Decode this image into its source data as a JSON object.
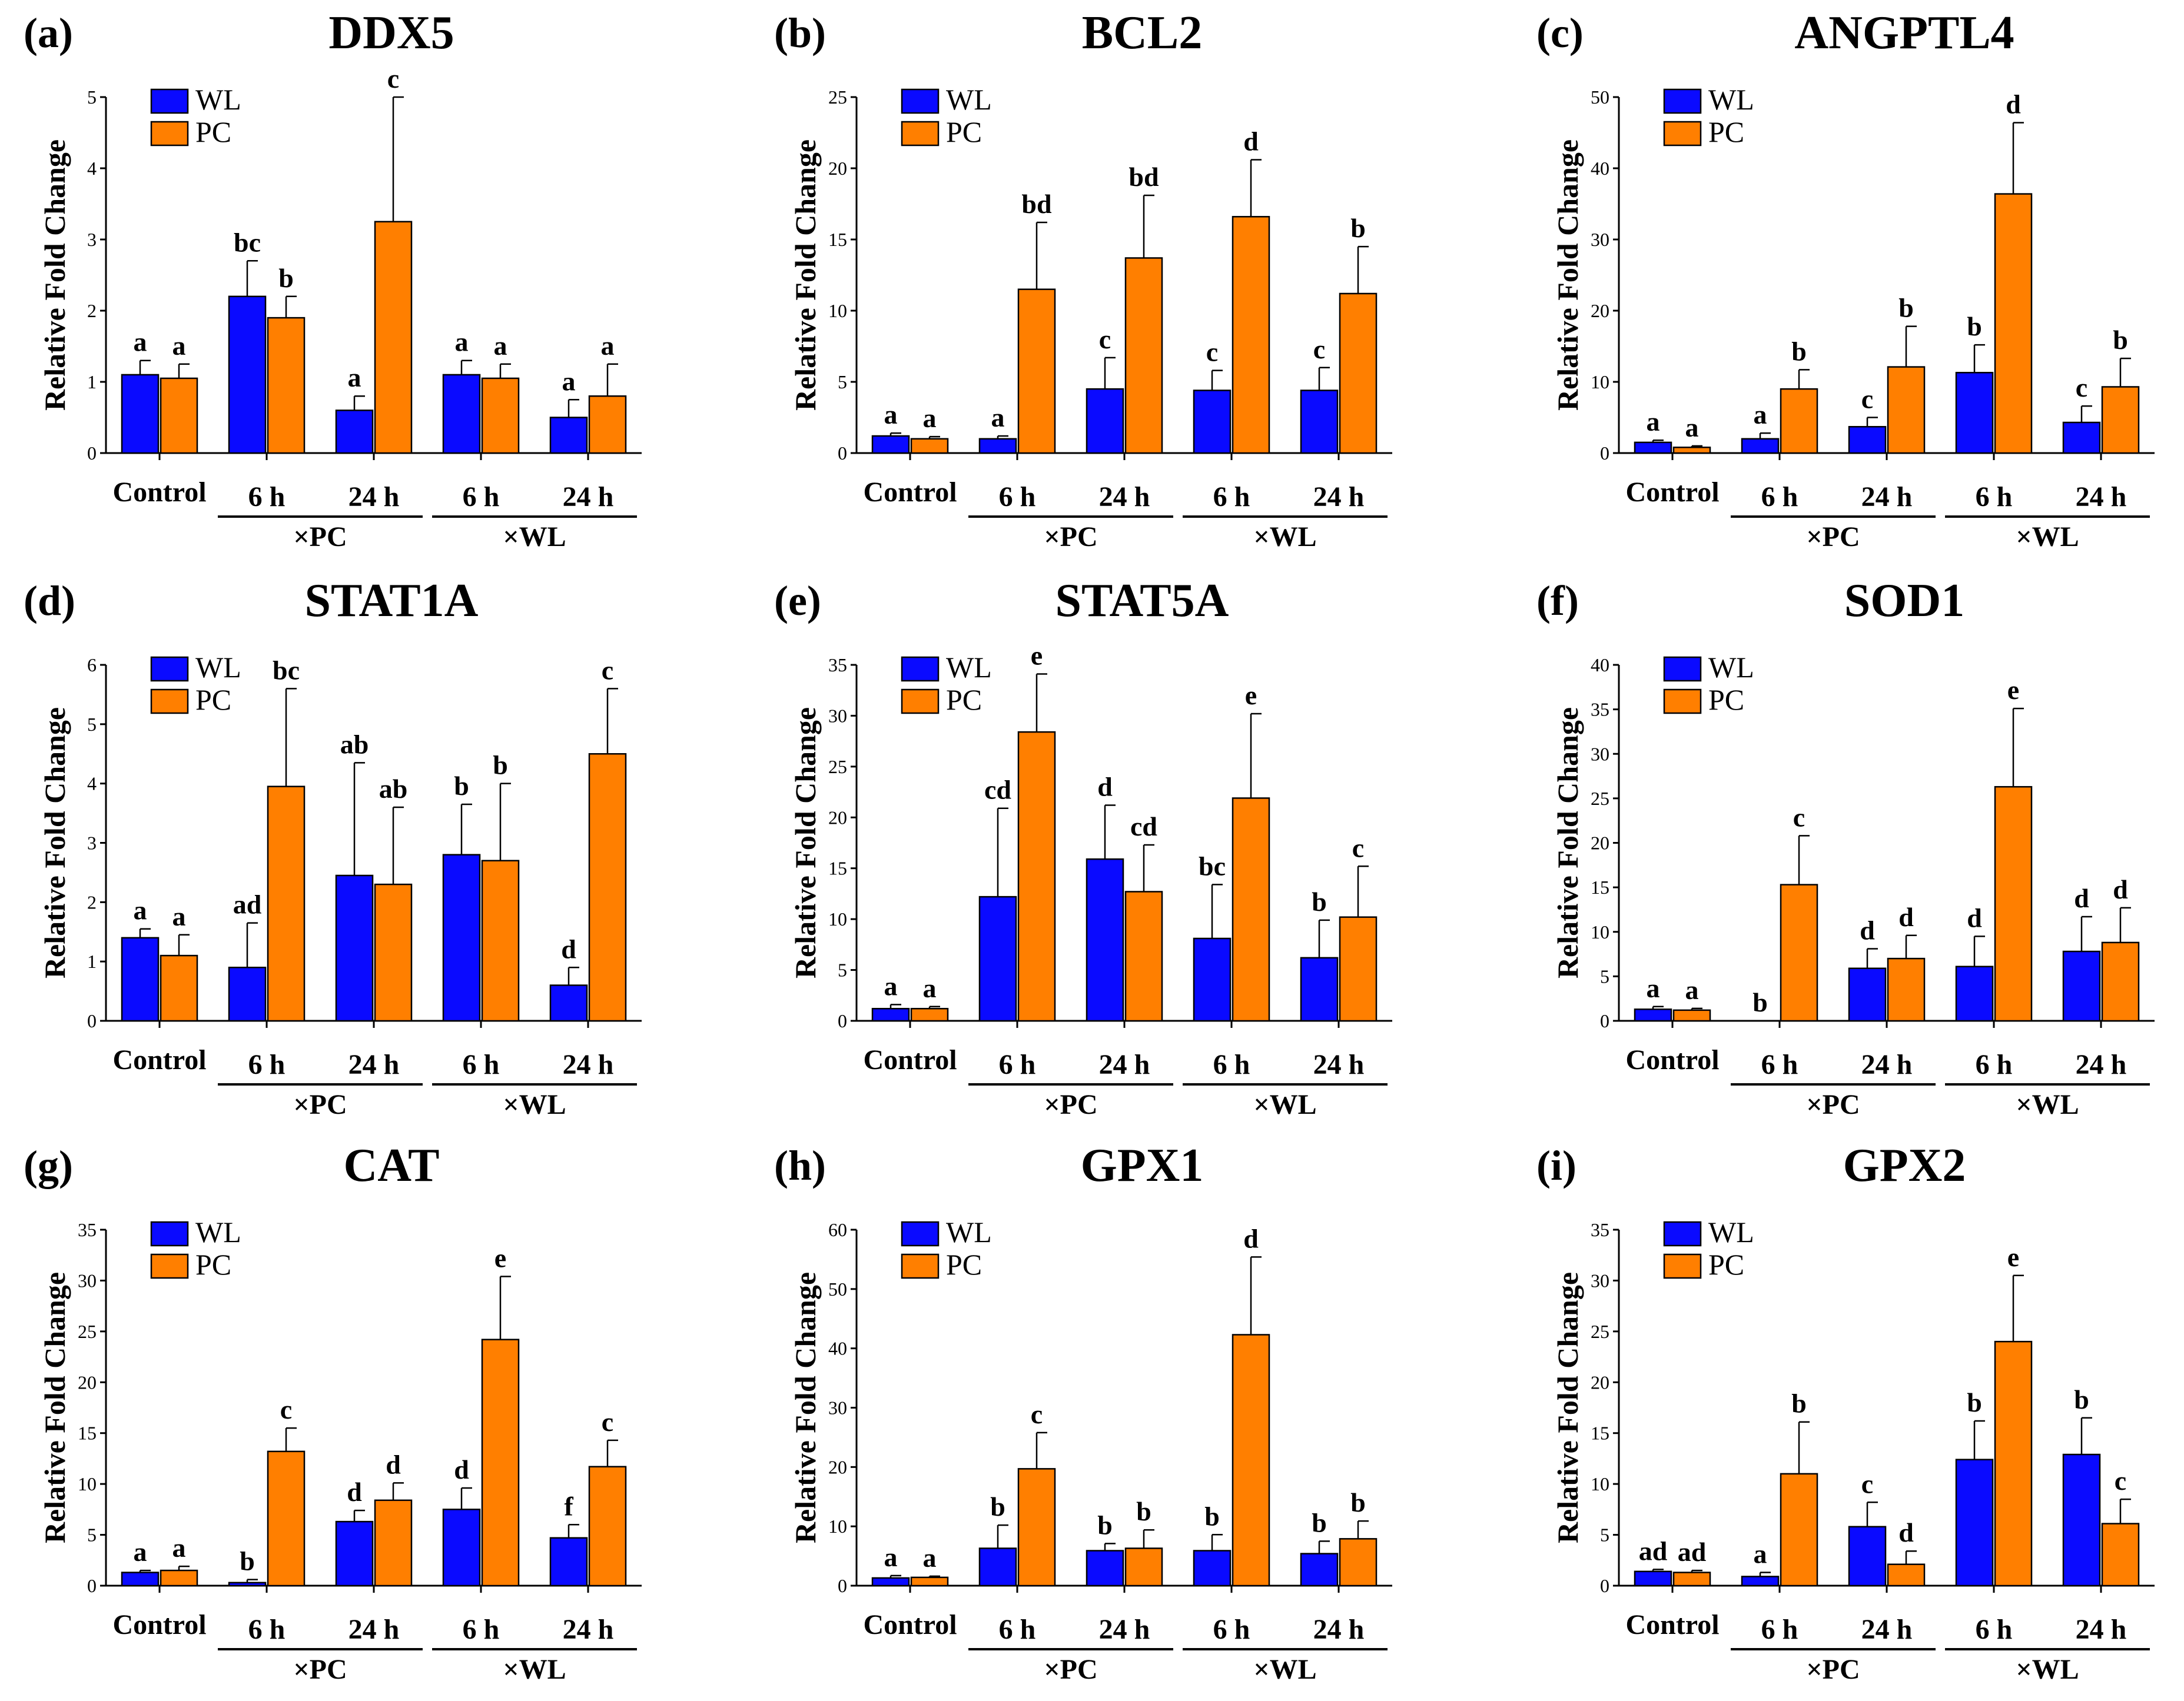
{
  "colors": {
    "wl": "#0a0aff",
    "pc": "#ff7f00"
  },
  "common": {
    "ylabel": "Relative Fold Change",
    "legend": [
      "WL",
      "PC"
    ],
    "categories": [
      "Control",
      "6 h",
      "24 h",
      "6 h",
      "24 h"
    ],
    "groups": [
      "×PC",
      "×WL"
    ]
  },
  "chart_data": [
    {
      "type": "bar",
      "panel": "(a)",
      "title": "DDX5",
      "ylim": [
        0,
        5
      ],
      "yticks": [
        0,
        1,
        2,
        3,
        4,
        5
      ],
      "categories": [
        "Control",
        "6 h",
        "24 h",
        "6 h",
        "24 h"
      ],
      "groups": [
        "×PC",
        "×WL"
      ],
      "series": [
        {
          "name": "WL",
          "values": [
            1.1,
            2.2,
            0.6,
            1.1,
            0.5
          ],
          "errors": [
            0.2,
            0.5,
            0.2,
            0.2,
            0.25
          ],
          "labels": [
            "a",
            "bc",
            "a",
            "a",
            "a"
          ]
        },
        {
          "name": "PC",
          "values": [
            1.05,
            1.9,
            3.25,
            1.05,
            0.8
          ],
          "errors": [
            0.2,
            0.3,
            1.75,
            0.2,
            0.45
          ],
          "labels": [
            "a",
            "b",
            "c",
            "a",
            "a"
          ]
        }
      ]
    },
    {
      "type": "bar",
      "panel": "(b)",
      "title": "BCL2",
      "ylim": [
        0,
        25
      ],
      "yticks": [
        0,
        5,
        10,
        15,
        20,
        25
      ],
      "categories": [
        "Control",
        "6 h",
        "24 h",
        "6 h",
        "24 h"
      ],
      "groups": [
        "×PC",
        "×WL"
      ],
      "series": [
        {
          "name": "WL",
          "values": [
            1.2,
            1.0,
            4.5,
            4.4,
            4.4
          ],
          "errors": [
            0.2,
            0.2,
            2.2,
            1.4,
            1.6
          ],
          "labels": [
            "a",
            "a",
            "c",
            "c",
            "c"
          ]
        },
        {
          "name": "PC",
          "values": [
            1.0,
            11.5,
            13.7,
            16.6,
            11.2
          ],
          "errors": [
            0.15,
            4.7,
            4.4,
            4.0,
            3.3
          ],
          "labels": [
            "a",
            "bd",
            "bd",
            "d",
            "b"
          ]
        }
      ]
    },
    {
      "type": "bar",
      "panel": "(c)",
      "title": "ANGPTL4",
      "ylim": [
        0,
        50
      ],
      "yticks": [
        0,
        10,
        20,
        30,
        40,
        50
      ],
      "categories": [
        "Control",
        "6 h",
        "24 h",
        "6 h",
        "24 h"
      ],
      "groups": [
        "×PC",
        "×WL"
      ],
      "series": [
        {
          "name": "WL",
          "values": [
            1.5,
            2.0,
            3.7,
            11.3,
            4.3
          ],
          "errors": [
            0.3,
            0.8,
            1.3,
            3.9,
            2.3
          ],
          "labels": [
            "a",
            "a",
            "c",
            "b",
            "c"
          ]
        },
        {
          "name": "PC",
          "values": [
            0.8,
            9.0,
            12.1,
            36.4,
            9.3
          ],
          "errors": [
            0.2,
            2.7,
            5.7,
            10.0,
            4.0
          ],
          "labels": [
            "a",
            "b",
            "b",
            "d",
            "b"
          ]
        }
      ]
    },
    {
      "type": "bar",
      "panel": "(d)",
      "title": "STAT1A",
      "ylim": [
        0,
        6
      ],
      "yticks": [
        0,
        1,
        2,
        3,
        4,
        5,
        6
      ],
      "categories": [
        "Control",
        "6 h",
        "24 h",
        "6 h",
        "24 h"
      ],
      "groups": [
        "×PC",
        "×WL"
      ],
      "series": [
        {
          "name": "WL",
          "values": [
            1.4,
            0.9,
            2.45,
            2.8,
            0.6
          ],
          "errors": [
            0.15,
            0.75,
            1.9,
            0.85,
            0.3
          ],
          "labels": [
            "a",
            "ad",
            "ab",
            "b",
            "d"
          ]
        },
        {
          "name": "PC",
          "values": [
            1.1,
            3.95,
            2.3,
            2.7,
            4.5
          ],
          "errors": [
            0.35,
            1.65,
            1.3,
            1.3,
            1.1
          ],
          "labels": [
            "a",
            "bc",
            "ab",
            "b",
            "c"
          ]
        }
      ]
    },
    {
      "type": "bar",
      "panel": "(e)",
      "title": "STAT5A",
      "ylim": [
        0,
        35
      ],
      "yticks": [
        0,
        5,
        10,
        15,
        20,
        25,
        30,
        35
      ],
      "categories": [
        "Control",
        "6 h",
        "24 h",
        "6 h",
        "24 h"
      ],
      "groups": [
        "×PC",
        "×WL"
      ],
      "series": [
        {
          "name": "WL",
          "values": [
            1.2,
            12.2,
            15.9,
            8.1,
            6.2
          ],
          "errors": [
            0.4,
            8.7,
            5.3,
            5.3,
            3.7
          ],
          "labels": [
            "a",
            "cd",
            "d",
            "bc",
            "b"
          ]
        },
        {
          "name": "PC",
          "values": [
            1.2,
            28.4,
            12.7,
            21.9,
            10.2
          ],
          "errors": [
            0.2,
            5.7,
            4.6,
            8.3,
            5.0
          ],
          "labels": [
            "a",
            "e",
            "cd",
            "e",
            "c"
          ]
        }
      ]
    },
    {
      "type": "bar",
      "panel": "(f)",
      "title": "SOD1",
      "ylim": [
        0,
        40
      ],
      "yticks": [
        0,
        5,
        10,
        15,
        20,
        25,
        30,
        35,
        40
      ],
      "categories": [
        "Control",
        "6 h",
        "24 h",
        "6 h",
        "24 h"
      ],
      "groups": [
        "×PC",
        "×WL"
      ],
      "series": [
        {
          "name": "WL",
          "values": [
            1.3,
            0.0,
            5.9,
            6.1,
            7.8
          ],
          "errors": [
            0.3,
            0.0,
            2.2,
            3.4,
            3.9
          ],
          "labels": [
            "a",
            "b",
            "d",
            "d",
            "d"
          ]
        },
        {
          "name": "PC",
          "values": [
            1.2,
            15.3,
            7.0,
            26.3,
            8.8
          ],
          "errors": [
            0.2,
            5.5,
            2.6,
            8.8,
            3.9
          ],
          "labels": [
            "a",
            "c",
            "d",
            "e",
            "d"
          ]
        }
      ]
    },
    {
      "type": "bar",
      "panel": "(g)",
      "title": "CAT",
      "ylim": [
        0,
        35
      ],
      "yticks": [
        0,
        5,
        10,
        15,
        20,
        25,
        30,
        35
      ],
      "categories": [
        "Control",
        "6 h",
        "24 h",
        "6 h",
        "24 h"
      ],
      "groups": [
        "×PC",
        "×WL"
      ],
      "series": [
        {
          "name": "WL",
          "values": [
            1.3,
            0.3,
            6.3,
            7.5,
            4.7
          ],
          "errors": [
            0.2,
            0.3,
            1.1,
            2.1,
            1.3
          ],
          "labels": [
            "a",
            "b",
            "d",
            "d",
            "f"
          ]
        },
        {
          "name": "PC",
          "values": [
            1.5,
            13.2,
            8.4,
            24.2,
            11.7
          ],
          "errors": [
            0.4,
            2.3,
            1.7,
            6.2,
            2.6
          ],
          "labels": [
            "a",
            "c",
            "d",
            "e",
            "c"
          ]
        }
      ]
    },
    {
      "type": "bar",
      "panel": "(h)",
      "title": "GPX1",
      "ylim": [
        0,
        60
      ],
      "yticks": [
        0,
        10,
        20,
        30,
        40,
        50,
        60
      ],
      "categories": [
        "Control",
        "6 h",
        "24 h",
        "6 h",
        "24 h"
      ],
      "groups": [
        "×PC",
        "×WL"
      ],
      "series": [
        {
          "name": "WL",
          "values": [
            1.3,
            6.3,
            5.9,
            5.9,
            5.4
          ],
          "errors": [
            0.4,
            3.9,
            1.2,
            2.7,
            2.1
          ],
          "labels": [
            "a",
            "b",
            "b",
            "b",
            "b"
          ]
        },
        {
          "name": "PC",
          "values": [
            1.4,
            19.7,
            6.3,
            42.3,
            7.9
          ],
          "errors": [
            0.2,
            6.1,
            3.1,
            13.1,
            3.0
          ],
          "labels": [
            "a",
            "c",
            "b",
            "d",
            "b"
          ]
        }
      ]
    },
    {
      "type": "bar",
      "panel": "(i)",
      "title": "GPX2",
      "ylim": [
        0,
        35
      ],
      "yticks": [
        0,
        5,
        10,
        15,
        20,
        25,
        30,
        35
      ],
      "categories": [
        "Control",
        "6 h",
        "24 h",
        "6 h",
        "24 h"
      ],
      "groups": [
        "×PC",
        "×WL"
      ],
      "series": [
        {
          "name": "WL",
          "values": [
            1.4,
            0.9,
            5.8,
            12.4,
            12.9
          ],
          "errors": [
            0.2,
            0.4,
            2.4,
            3.8,
            3.6
          ],
          "labels": [
            "ad",
            "a",
            "c",
            "b",
            "b"
          ]
        },
        {
          "name": "PC",
          "values": [
            1.3,
            11.0,
            2.1,
            24.0,
            6.1
          ],
          "errors": [
            0.2,
            5.1,
            1.3,
            6.5,
            2.4
          ],
          "labels": [
            "ad",
            "b",
            "d",
            "e",
            "c"
          ]
        }
      ]
    }
  ]
}
